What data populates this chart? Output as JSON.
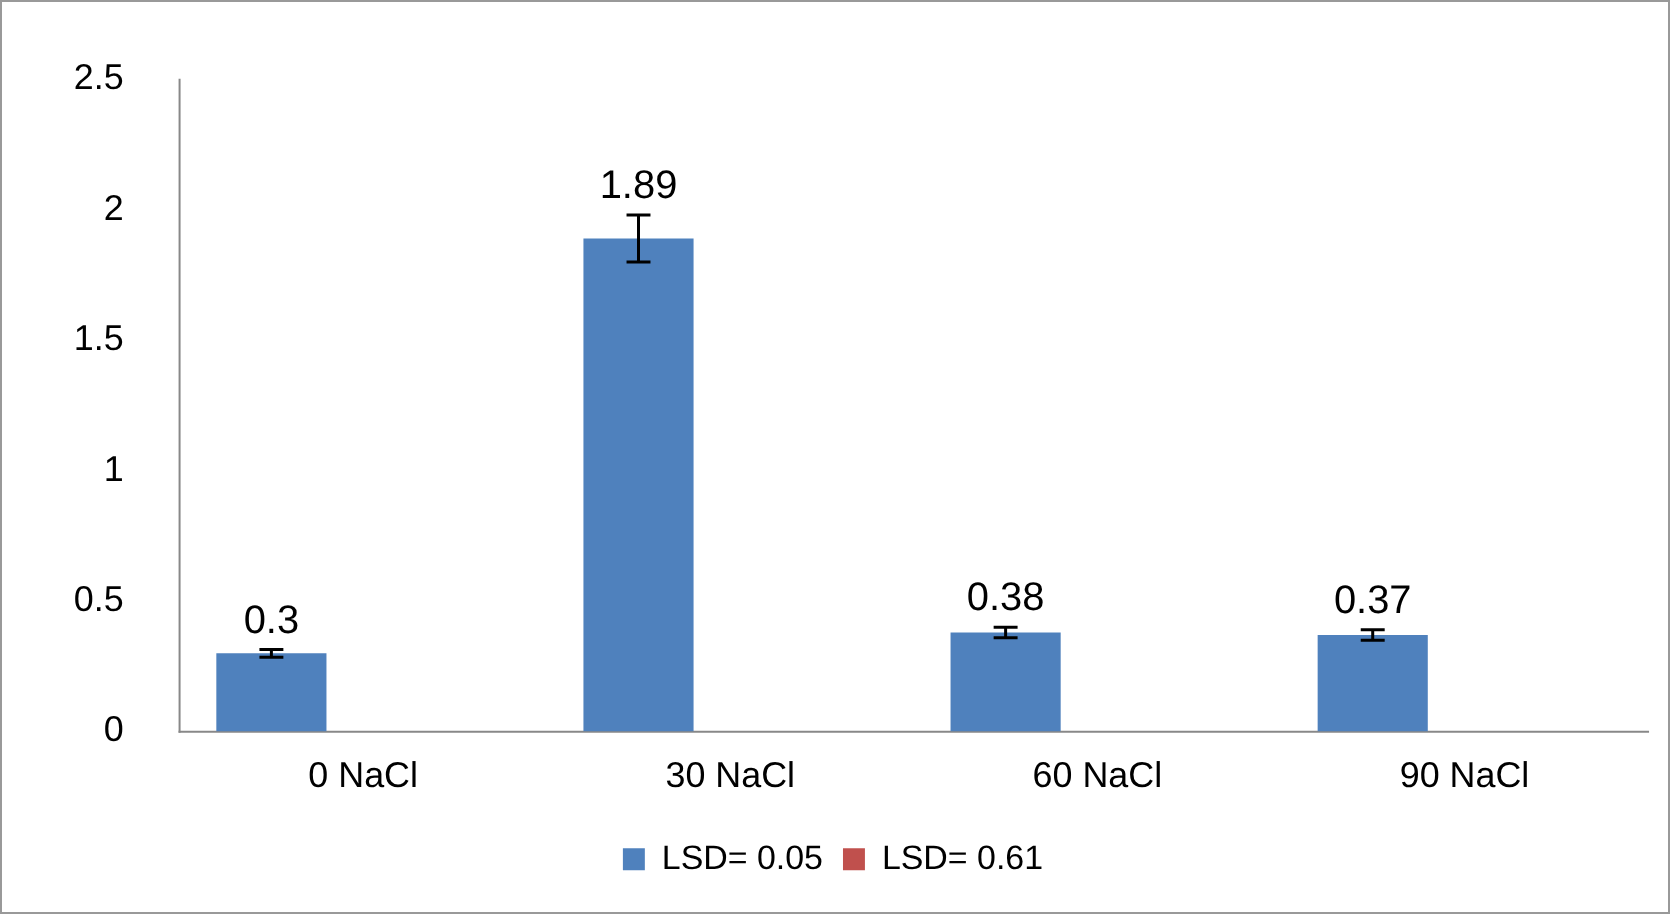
{
  "chart_data": {
    "type": "bar",
    "categories": [
      "0 NaCl",
      "30 NaCl",
      "60 NaCl",
      "90 NaCl"
    ],
    "series": [
      {
        "name": "LSD= 0.05",
        "color": "#4f81bd",
        "values": [
          0.3,
          1.89,
          0.38,
          0.37
        ],
        "errors": [
          0.015,
          0.09,
          0.02,
          0.02
        ]
      },
      {
        "name": "LSD= 0.61",
        "color": "#c0504d",
        "values": [
          null,
          null,
          null,
          null
        ]
      }
    ],
    "ylim": [
      0,
      2.5
    ],
    "yticks": [
      0,
      0.5,
      1,
      1.5,
      2,
      2.5
    ],
    "grid": false,
    "legend": "bottom",
    "data_labels": true
  }
}
